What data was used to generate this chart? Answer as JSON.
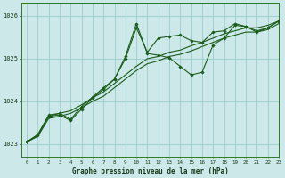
{
  "bg_color": "#cce8e8",
  "grid_color": "#99cccc",
  "title": "Graphe pression niveau de la mer (hPa)",
  "xlim": [
    -0.5,
    23
  ],
  "ylim": [
    1022.7,
    1026.3
  ],
  "yticks": [
    1023,
    1024,
    1025,
    1026
  ],
  "xticks": [
    0,
    1,
    2,
    3,
    4,
    5,
    6,
    7,
    8,
    9,
    10,
    11,
    12,
    13,
    14,
    15,
    16,
    17,
    18,
    19,
    20,
    21,
    22,
    23
  ],
  "dark_green": "#1a5c1a",
  "series_smooth": [
    [
      0,
      1023.05,
      1,
      1023.22,
      2,
      1023.65,
      3,
      1023.72,
      4,
      1023.78,
      5,
      1023.92,
      6,
      1024.08,
      7,
      1024.22,
      8,
      1024.42,
      9,
      1024.62,
      10,
      1024.82,
      11,
      1025.0,
      12,
      1025.05,
      13,
      1025.15,
      14,
      1025.2,
      15,
      1025.3,
      16,
      1025.38,
      17,
      1025.48,
      18,
      1025.58,
      19,
      1025.65,
      20,
      1025.72,
      21,
      1025.72,
      22,
      1025.78,
      23,
      1025.88
    ],
    [
      0,
      1023.05,
      1,
      1023.18,
      2,
      1023.6,
      3,
      1023.65,
      4,
      1023.72,
      5,
      1023.85,
      6,
      1024.0,
      7,
      1024.12,
      8,
      1024.32,
      9,
      1024.52,
      10,
      1024.72,
      11,
      1024.88,
      12,
      1024.95,
      13,
      1025.05,
      14,
      1025.1,
      15,
      1025.18,
      16,
      1025.28,
      17,
      1025.38,
      18,
      1025.48,
      19,
      1025.55,
      20,
      1025.62,
      21,
      1025.62,
      22,
      1025.68,
      23,
      1025.82
    ]
  ],
  "series_marked": [
    [
      0,
      1023.05,
      1,
      1023.2,
      2,
      1023.65,
      3,
      1023.68,
      4,
      1023.55,
      5,
      1023.82,
      6,
      1024.08,
      7,
      1024.28,
      8,
      1024.52,
      9,
      1025.05,
      10,
      1025.82,
      11,
      1025.12,
      12,
      1025.08,
      13,
      1025.02,
      14,
      1024.82,
      15,
      1024.62,
      16,
      1024.68,
      17,
      1025.32,
      18,
      1025.48,
      19,
      1025.78,
      20,
      1025.75,
      21,
      1025.65,
      22,
      1025.72,
      23,
      1025.88
    ],
    [
      0,
      1023.05,
      1,
      1023.22,
      2,
      1023.68,
      3,
      1023.72,
      4,
      1023.58,
      5,
      1023.88,
      6,
      1024.1,
      7,
      1024.32,
      8,
      1024.52,
      9,
      1025.0,
      10,
      1025.72,
      11,
      1025.15,
      12,
      1025.48,
      13,
      1025.52,
      14,
      1025.55,
      15,
      1025.42,
      16,
      1025.38,
      17,
      1025.62,
      18,
      1025.65,
      19,
      1025.82,
      20,
      1025.75,
      21,
      1025.62,
      22,
      1025.72,
      23,
      1025.88
    ]
  ]
}
